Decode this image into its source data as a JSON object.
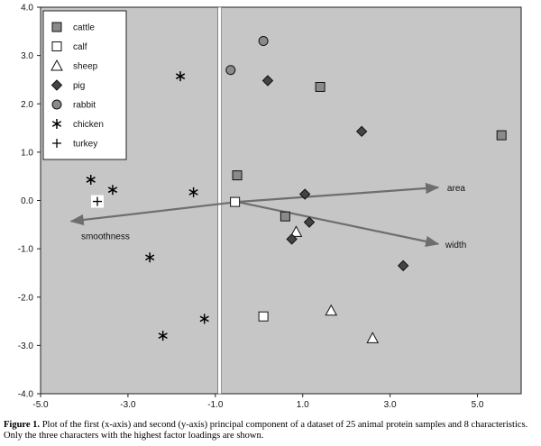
{
  "chart_data": {
    "type": "scatter",
    "xlim": [
      -5.0,
      6.0
    ],
    "ylim": [
      -4.0,
      4.0
    ],
    "x_ticks": [
      -5.0,
      -3.0,
      -1.0,
      1.0,
      3.0,
      5.0
    ],
    "x_tick_labels": [
      "-5.0",
      "-3.0",
      "-1.0",
      "1.0",
      "3.0",
      "5.0"
    ],
    "y_ticks": [
      -4.0,
      -3.0,
      -2.0,
      -1.0,
      0.0,
      1.0,
      2.0,
      3.0,
      4.0
    ],
    "y_tick_labels": [
      "-4.0",
      "-3.0",
      "-2.0",
      "-1.0",
      "0.0",
      "1.0",
      "2.0",
      "3.0",
      "4.0"
    ],
    "x_zero_line": -0.9,
    "legend_position": "top-left",
    "series": [
      {
        "name": "cattle",
        "marker": "square",
        "fill": "#8a8a8a",
        "points": [
          [
            1.4,
            2.35
          ],
          [
            5.55,
            1.35
          ],
          [
            -0.5,
            0.52
          ],
          [
            0.6,
            -0.33
          ]
        ]
      },
      {
        "name": "calf",
        "marker": "square",
        "fill": "#ffffff",
        "points": [
          [
            -0.55,
            -0.03
          ],
          [
            0.1,
            -2.4
          ]
        ]
      },
      {
        "name": "sheep",
        "marker": "triangle",
        "fill": "#ffffff",
        "points": [
          [
            0.85,
            -0.65
          ],
          [
            1.65,
            -2.28
          ],
          [
            2.6,
            -2.85
          ]
        ]
      },
      {
        "name": "pig",
        "marker": "diamond",
        "fill": "#444444",
        "points": [
          [
            0.2,
            2.48
          ],
          [
            2.35,
            1.43
          ],
          [
            1.05,
            0.13
          ],
          [
            0.75,
            -0.8
          ],
          [
            1.15,
            -0.45
          ],
          [
            3.3,
            -1.35
          ]
        ]
      },
      {
        "name": "rabbit",
        "marker": "circle",
        "fill": "#8a8a8a",
        "points": [
          [
            0.1,
            3.3
          ],
          [
            -0.65,
            2.7
          ]
        ]
      },
      {
        "name": "chicken",
        "marker": "asterisk",
        "fill": "#000000",
        "points": [
          [
            -1.8,
            2.57
          ],
          [
            -3.85,
            0.43
          ],
          [
            -3.35,
            0.22
          ],
          [
            -1.5,
            0.17
          ],
          [
            -2.5,
            -1.18
          ],
          [
            -1.25,
            -2.45
          ],
          [
            -2.2,
            -2.8
          ]
        ]
      },
      {
        "name": "turkey",
        "marker": "plus",
        "fill": "#000000",
        "points": [
          [
            -3.7,
            -0.02
          ]
        ]
      }
    ],
    "vectors": [
      {
        "label": "area",
        "from": [
          -0.5,
          -0.03
        ],
        "to": [
          4.1,
          0.27
        ]
      },
      {
        "label": "smoothness",
        "from": [
          -0.5,
          -0.03
        ],
        "to": [
          -4.3,
          -0.43
        ]
      },
      {
        "label": "width",
        "from": [
          -0.5,
          -0.03
        ],
        "to": [
          4.1,
          -0.9
        ]
      }
    ]
  },
  "caption": {
    "label": "Figure 1.",
    "text": " Plot of the first (x-axis) and second (y-axis) principal component of a dataset of 25 animal protein samples and 8 characteristics. Only the three characters with the highest factor loadings are shown."
  },
  "colors": {
    "plot_background": "#c6c6c6",
    "vector_color": "#6e6e6e"
  }
}
